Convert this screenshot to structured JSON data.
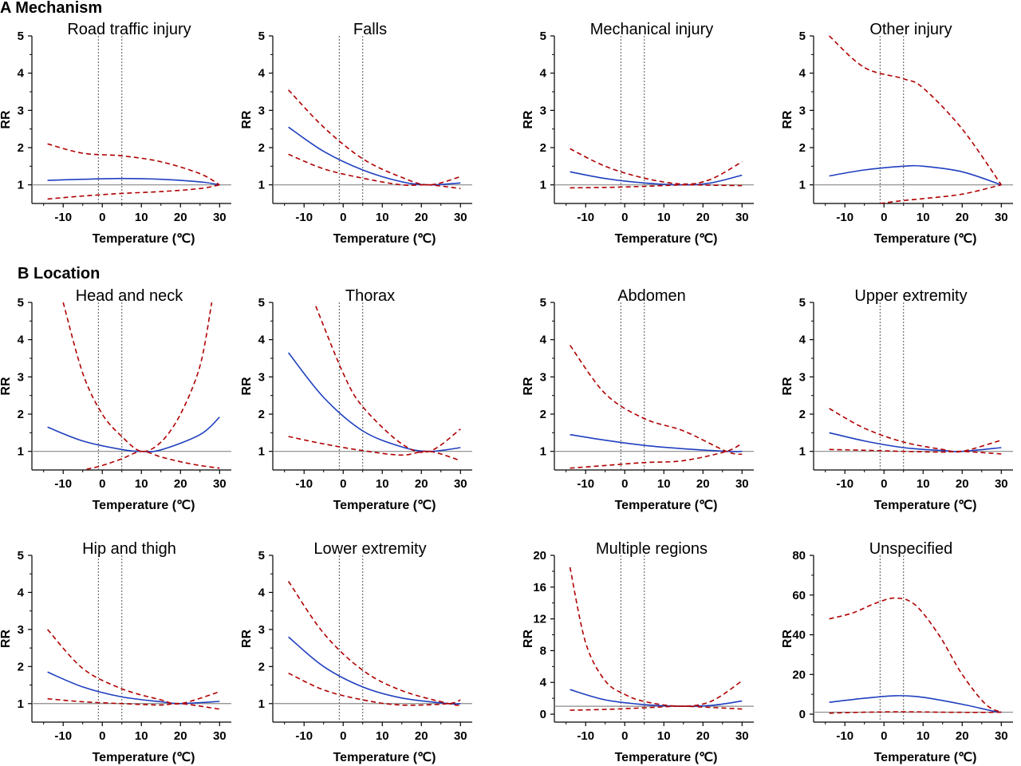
{
  "sections": [
    {
      "label": "A Mechanism"
    },
    {
      "label": "B Location"
    }
  ],
  "colors": {
    "estimate": "#1f3fbf",
    "ci": "#b00000",
    "reference": "#888888",
    "vline": "#555555"
  },
  "chart_data": [
    {
      "type": "line",
      "title": "Road traffic injury",
      "xlabel": "Temperature (℃)",
      "ylabel": "RR",
      "xlim": [
        -18,
        33
      ],
      "ylim": [
        0.5,
        5
      ],
      "yticks": [
        1,
        2,
        3,
        4,
        5
      ],
      "xticks": [
        -10,
        0,
        10,
        20,
        30
      ],
      "vlines": [
        -1,
        5
      ],
      "reference_y": 1,
      "grid": false,
      "series": [
        {
          "x": [
            -14,
            -5,
            5,
            15,
            25,
            30
          ],
          "y": [
            1.12,
            1.15,
            1.17,
            1.15,
            1.08,
            1.0
          ]
        },
        {
          "x": [
            -14,
            -5,
            5,
            15,
            25,
            30
          ],
          "y": [
            2.1,
            1.85,
            1.78,
            1.62,
            1.3,
            1.0
          ]
        },
        {
          "x": [
            -14,
            -5,
            5,
            15,
            25,
            30
          ],
          "y": [
            0.62,
            0.7,
            0.77,
            0.82,
            0.9,
            1.0
          ]
        }
      ]
    },
    {
      "type": "line",
      "title": "Falls",
      "xlabel": "Temperature (℃)",
      "ylabel": "RR",
      "xlim": [
        -18,
        33
      ],
      "ylim": [
        0.5,
        5
      ],
      "yticks": [
        1,
        2,
        3,
        4,
        5
      ],
      "xticks": [
        -10,
        0,
        10,
        20,
        30
      ],
      "vlines": [
        -1,
        5
      ],
      "reference_y": 1,
      "grid": false,
      "series": [
        {
          "x": [
            -14,
            -5,
            5,
            15,
            22,
            30
          ],
          "y": [
            2.55,
            1.9,
            1.4,
            1.08,
            1.0,
            1.05
          ]
        },
        {
          "x": [
            -14,
            -5,
            5,
            15,
            22,
            30
          ],
          "y": [
            3.55,
            2.55,
            1.7,
            1.2,
            1.0,
            1.22
          ]
        },
        {
          "x": [
            -14,
            -5,
            5,
            15,
            22,
            30
          ],
          "y": [
            1.82,
            1.43,
            1.18,
            1.0,
            1.0,
            0.9
          ]
        }
      ]
    },
    {
      "type": "line",
      "title": "Mechanical injury",
      "xlabel": "Temperature (℃)",
      "ylabel": "RR",
      "xlim": [
        -18,
        33
      ],
      "ylim": [
        0.5,
        5
      ],
      "yticks": [
        1,
        2,
        3,
        4,
        5
      ],
      "xticks": [
        -10,
        0,
        10,
        20,
        30
      ],
      "vlines": [
        -1,
        5
      ],
      "reference_y": 1,
      "grid": false,
      "series": [
        {
          "x": [
            -14,
            -5,
            5,
            15,
            22,
            30
          ],
          "y": [
            1.35,
            1.17,
            1.05,
            1.0,
            1.05,
            1.26
          ]
        },
        {
          "x": [
            -14,
            -5,
            5,
            15,
            22,
            30
          ],
          "y": [
            1.97,
            1.5,
            1.18,
            1.02,
            1.15,
            1.62
          ]
        },
        {
          "x": [
            -14,
            -5,
            5,
            15,
            22,
            30
          ],
          "y": [
            0.92,
            0.93,
            0.96,
            1.0,
            0.99,
            0.98
          ]
        }
      ]
    },
    {
      "type": "line",
      "title": "Other injury",
      "xlabel": "Temperature (℃)",
      "ylabel": "RR",
      "xlim": [
        -18,
        33
      ],
      "ylim": [
        0.5,
        5
      ],
      "yticks": [
        1,
        2,
        3,
        4,
        5
      ],
      "xticks": [
        -10,
        0,
        10,
        20,
        30
      ],
      "vlines": [
        -1,
        5
      ],
      "reference_y": 1,
      "grid": false,
      "series": [
        {
          "x": [
            -14,
            -5,
            5,
            10,
            20,
            30
          ],
          "y": [
            1.24,
            1.4,
            1.5,
            1.5,
            1.35,
            1.0
          ]
        },
        {
          "x": [
            -14,
            -5,
            5,
            10,
            20,
            30
          ],
          "y": [
            5.0,
            4.15,
            3.85,
            3.6,
            2.5,
            1.0
          ]
        },
        {
          "x": [
            -1,
            5,
            10,
            20,
            30
          ],
          "y": [
            0.5,
            0.58,
            0.63,
            0.75,
            1.0
          ]
        }
      ]
    },
    {
      "type": "line",
      "title": "Head and neck",
      "xlabel": "Temperature (℃)",
      "ylabel": "RR",
      "xlim": [
        -18,
        33
      ],
      "ylim": [
        0.5,
        5
      ],
      "yticks": [
        1,
        2,
        3,
        4,
        5
      ],
      "xticks": [
        -10,
        0,
        10,
        20,
        30
      ],
      "vlines": [
        -1,
        5
      ],
      "reference_y": 1,
      "grid": false,
      "series": [
        {
          "x": [
            -14,
            -5,
            5,
            10,
            15,
            25,
            30
          ],
          "y": [
            1.65,
            1.28,
            1.05,
            1.0,
            1.04,
            1.45,
            1.92
          ]
        },
        {
          "x": [
            -10,
            -5,
            0,
            5,
            10,
            15,
            20,
            25,
            28
          ],
          "y": [
            5.0,
            3.1,
            2.0,
            1.4,
            1.0,
            1.25,
            2.0,
            3.3,
            5.0
          ]
        },
        {
          "x": [
            -4,
            0,
            5,
            10,
            15,
            20,
            25,
            30
          ],
          "y": [
            0.52,
            0.62,
            0.8,
            1.0,
            0.85,
            0.72,
            0.62,
            0.55
          ]
        }
      ]
    },
    {
      "type": "line",
      "title": "Thorax",
      "xlabel": "Temperature (℃)",
      "ylabel": "RR",
      "xlim": [
        -18,
        33
      ],
      "ylim": [
        0.5,
        5
      ],
      "yticks": [
        1,
        2,
        3,
        4,
        5
      ],
      "xticks": [
        -10,
        0,
        10,
        20,
        30
      ],
      "vlines": [
        -1,
        5
      ],
      "reference_y": 1,
      "grid": false,
      "series": [
        {
          "x": [
            -14,
            -5,
            5,
            15,
            22,
            30
          ],
          "y": [
            3.65,
            2.45,
            1.55,
            1.12,
            1.0,
            1.1
          ]
        },
        {
          "x": [
            -7,
            0,
            5,
            15,
            22,
            30
          ],
          "y": [
            4.9,
            3.1,
            2.2,
            1.2,
            1.0,
            1.6
          ]
        },
        {
          "x": [
            -14,
            -5,
            5,
            15,
            22,
            30
          ],
          "y": [
            1.4,
            1.2,
            1.02,
            0.9,
            1.0,
            0.75
          ]
        }
      ]
    },
    {
      "type": "line",
      "title": "Abdomen",
      "xlabel": "Temperature (℃)",
      "ylabel": "RR",
      "xlim": [
        -18,
        33
      ],
      "ylim": [
        0.5,
        5
      ],
      "yticks": [
        1,
        2,
        3,
        4,
        5
      ],
      "xticks": [
        -10,
        0,
        10,
        20,
        30
      ],
      "vlines": [
        -1,
        5
      ],
      "reference_y": 1,
      "grid": false,
      "series": [
        {
          "x": [
            -14,
            -5,
            5,
            15,
            26,
            30
          ],
          "y": [
            1.45,
            1.3,
            1.16,
            1.07,
            1.0,
            1.0
          ]
        },
        {
          "x": [
            -14,
            -5,
            5,
            15,
            26,
            30
          ],
          "y": [
            3.85,
            2.55,
            1.88,
            1.55,
            1.0,
            0.92
          ]
        },
        {
          "x": [
            -14,
            -5,
            5,
            15,
            26,
            30
          ],
          "y": [
            0.55,
            0.62,
            0.7,
            0.75,
            1.0,
            1.22
          ]
        }
      ]
    },
    {
      "type": "line",
      "title": "Upper extremity",
      "xlabel": "Temperature (℃)",
      "ylabel": "RR",
      "xlim": [
        -18,
        33
      ],
      "ylim": [
        0.5,
        5
      ],
      "yticks": [
        1,
        2,
        3,
        4,
        5
      ],
      "xticks": [
        -10,
        0,
        10,
        20,
        30
      ],
      "vlines": [
        -1,
        5
      ],
      "reference_y": 1,
      "grid": false,
      "series": [
        {
          "x": [
            -14,
            -5,
            5,
            15,
            20,
            30
          ],
          "y": [
            1.5,
            1.28,
            1.1,
            1.02,
            1.0,
            1.1
          ]
        },
        {
          "x": [
            -14,
            -5,
            5,
            15,
            20,
            30
          ],
          "y": [
            2.15,
            1.62,
            1.25,
            1.05,
            1.0,
            1.3
          ]
        },
        {
          "x": [
            -14,
            -5,
            5,
            15,
            20,
            30
          ],
          "y": [
            1.05,
            1.03,
            1.0,
            0.98,
            1.0,
            0.93
          ]
        }
      ]
    },
    {
      "type": "line",
      "title": "Hip and thigh",
      "xlabel": "Temperature (℃)",
      "ylabel": "RR",
      "xlim": [
        -18,
        33
      ],
      "ylim": [
        0.5,
        5
      ],
      "yticks": [
        1,
        2,
        3,
        4,
        5
      ],
      "xticks": [
        -10,
        0,
        10,
        20,
        30
      ],
      "vlines": [
        -1,
        5
      ],
      "reference_y": 1,
      "grid": false,
      "series": [
        {
          "x": [
            -14,
            -5,
            5,
            15,
            20,
            30
          ],
          "y": [
            1.85,
            1.45,
            1.18,
            1.05,
            1.0,
            1.06
          ]
        },
        {
          "x": [
            -14,
            -5,
            5,
            15,
            20,
            30
          ],
          "y": [
            3.0,
            1.95,
            1.4,
            1.1,
            1.0,
            1.32
          ]
        },
        {
          "x": [
            -14,
            -5,
            5,
            15,
            20,
            30
          ],
          "y": [
            1.13,
            1.05,
            1.0,
            0.96,
            1.0,
            0.85
          ]
        }
      ]
    },
    {
      "type": "line",
      "title": "Lower extremity",
      "xlabel": "Temperature (℃)",
      "ylabel": "RR",
      "xlim": [
        -18,
        33
      ],
      "ylim": [
        0.5,
        5
      ],
      "yticks": [
        1,
        2,
        3,
        4,
        5
      ],
      "xticks": [
        -10,
        0,
        10,
        20,
        30
      ],
      "vlines": [
        -1,
        5
      ],
      "reference_y": 1,
      "grid": false,
      "series": [
        {
          "x": [
            -14,
            -5,
            5,
            15,
            27,
            30
          ],
          "y": [
            2.8,
            2.0,
            1.45,
            1.15,
            1.0,
            1.0
          ]
        },
        {
          "x": [
            -14,
            -5,
            5,
            15,
            27,
            30
          ],
          "y": [
            4.3,
            2.9,
            1.9,
            1.35,
            1.0,
            0.95
          ]
        },
        {
          "x": [
            -14,
            -5,
            5,
            15,
            27,
            30
          ],
          "y": [
            1.82,
            1.37,
            1.1,
            0.96,
            1.0,
            1.1
          ]
        }
      ]
    },
    {
      "type": "line",
      "title": "Multiple regions",
      "xlabel": "Temperature (℃)",
      "ylabel": "RR",
      "xlim": [
        -18,
        33
      ],
      "ylim": [
        -1,
        20
      ],
      "yticks": [
        0,
        4,
        8,
        12,
        16,
        20
      ],
      "xticks": [
        -10,
        0,
        10,
        20,
        30
      ],
      "vlines": [
        -1,
        5
      ],
      "reference_y": 1,
      "grid": false,
      "series": [
        {
          "x": [
            -14,
            -5,
            5,
            14,
            22,
            30
          ],
          "y": [
            3.1,
            1.8,
            1.2,
            1.0,
            1.1,
            1.65
          ]
        },
        {
          "x": [
            -14,
            -10,
            -5,
            0,
            5,
            14,
            22,
            30
          ],
          "y": [
            18.5,
            9.0,
            4.2,
            2.5,
            1.6,
            1.0,
            1.6,
            4.2
          ]
        },
        {
          "x": [
            -14,
            -5,
            5,
            14,
            22,
            30
          ],
          "y": [
            0.5,
            0.6,
            0.8,
            1.0,
            0.85,
            0.65
          ]
        }
      ]
    },
    {
      "type": "line",
      "title": "Unspecified",
      "xlabel": "Temperature (℃)",
      "ylabel": "RR",
      "xlim": [
        -18,
        33
      ],
      "ylim": [
        -4,
        80
      ],
      "yticks": [
        0,
        20,
        40,
        60,
        80
      ],
      "xticks": [
        -10,
        0,
        10,
        20,
        30
      ],
      "vlines": [
        -1,
        5
      ],
      "reference_y": 1,
      "grid": false,
      "series": [
        {
          "x": [
            -14,
            -5,
            3,
            10,
            20,
            28,
            30
          ],
          "y": [
            6,
            8,
            9.3,
            8.5,
            5,
            1.5,
            1
          ]
        },
        {
          "x": [
            -14,
            -8,
            -2,
            3,
            8,
            14,
            20,
            26,
            30
          ],
          "y": [
            48,
            51,
            56,
            58.5,
            55,
            40,
            20,
            5,
            1
          ]
        },
        {
          "x": [
            -14,
            -5,
            5,
            15,
            25,
            30
          ],
          "y": [
            0.5,
            1.0,
            1.2,
            1.0,
            0.9,
            1.0
          ]
        }
      ]
    }
  ]
}
